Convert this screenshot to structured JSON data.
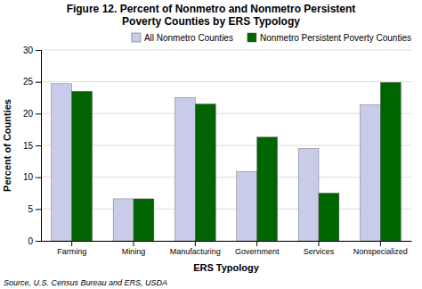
{
  "chart_data": {
    "type": "bar",
    "title": "Figure 12.  Percent of Nonmetro and Nonmetro Persistent\nPoverty Counties by ERS Typology",
    "categories": [
      "Farming",
      "Mining",
      "Manufacturing",
      "Government",
      "Services",
      "Nonspecialized"
    ],
    "series": [
      {
        "name": "All Nonmetro Counties",
        "color": "#c8cce8",
        "values": [
          24.7,
          6.6,
          22.5,
          10.9,
          14.5,
          21.4
        ]
      },
      {
        "name": "Nonmetro Persistent Poverty Counties",
        "color": "#006400",
        "values": [
          23.5,
          6.6,
          21.5,
          16.3,
          7.5,
          24.9
        ]
      }
    ],
    "xlabel": "ERS Typology",
    "ylabel": "Percent of Counties",
    "ylim": [
      0,
      30
    ],
    "yticks": [
      0,
      5,
      10,
      15,
      20,
      25,
      30
    ],
    "grid": true,
    "legend": "top",
    "source": "Source, U.S. Census Bureau and ERS, USDA"
  }
}
